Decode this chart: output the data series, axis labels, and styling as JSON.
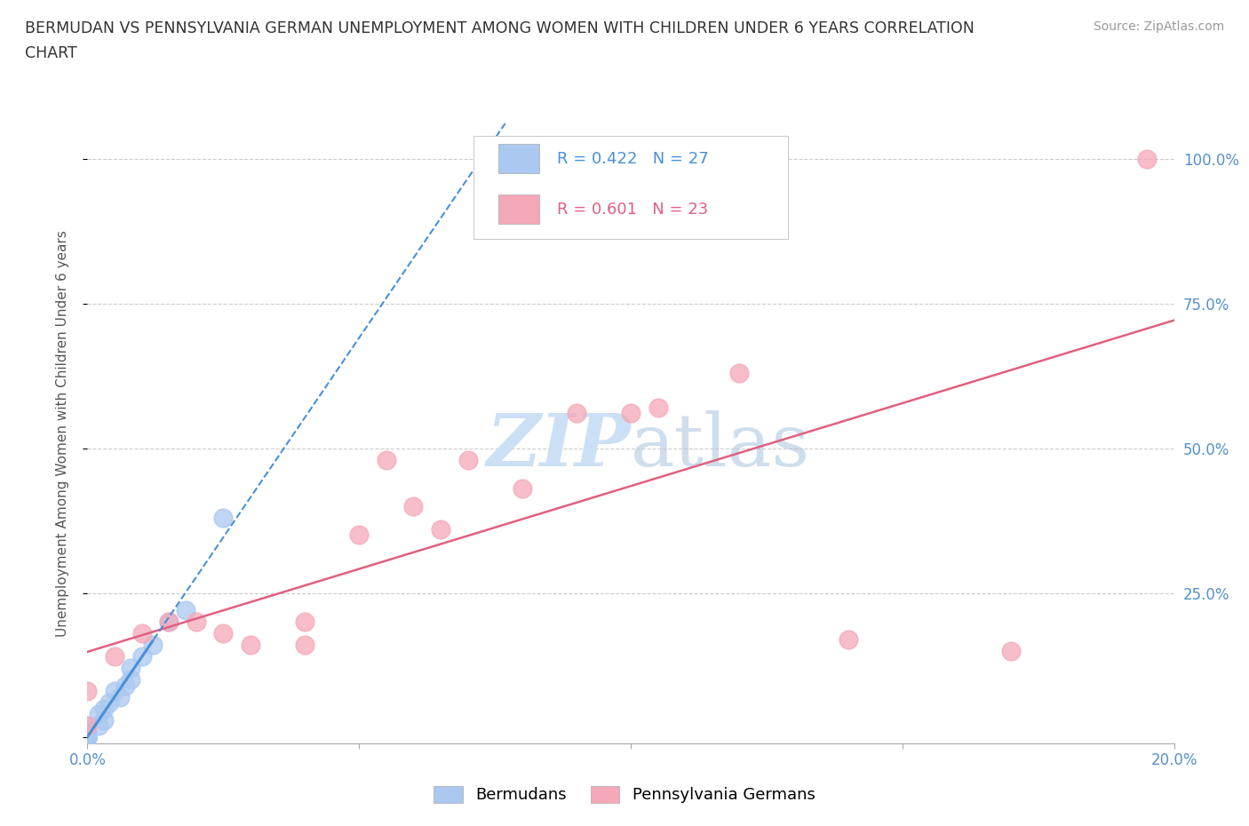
{
  "title_line1": "BERMUDAN VS PENNSYLVANIA GERMAN UNEMPLOYMENT AMONG WOMEN WITH CHILDREN UNDER 6 YEARS CORRELATION",
  "title_line2": "CHART",
  "source": "Source: ZipAtlas.com",
  "ylabel": "Unemployment Among Women with Children Under 6 years",
  "xlim": [
    0,
    0.2
  ],
  "ylim": [
    -0.01,
    1.06
  ],
  "bermudans_x": [
    0.0,
    0.0,
    0.0,
    0.0,
    0.0,
    0.0,
    0.0,
    0.0,
    0.0,
    0.0,
    0.0,
    0.0,
    0.002,
    0.002,
    0.003,
    0.003,
    0.004,
    0.005,
    0.006,
    0.007,
    0.008,
    0.008,
    0.01,
    0.012,
    0.015,
    0.018,
    0.025
  ],
  "bermudans_y": [
    0.0,
    0.0,
    0.0,
    0.0,
    0.0,
    0.0,
    0.0,
    0.0,
    0.005,
    0.01,
    0.01,
    0.02,
    0.02,
    0.04,
    0.03,
    0.05,
    0.06,
    0.08,
    0.07,
    0.09,
    0.1,
    0.12,
    0.14,
    0.16,
    0.2,
    0.22,
    0.38
  ],
  "pa_german_x": [
    0.0,
    0.0,
    0.005,
    0.01,
    0.015,
    0.02,
    0.025,
    0.03,
    0.04,
    0.04,
    0.05,
    0.055,
    0.06,
    0.065,
    0.07,
    0.08,
    0.09,
    0.1,
    0.105,
    0.12,
    0.14,
    0.17,
    0.195
  ],
  "pa_german_y": [
    0.02,
    0.08,
    0.14,
    0.18,
    0.2,
    0.2,
    0.18,
    0.16,
    0.16,
    0.2,
    0.35,
    0.48,
    0.4,
    0.36,
    0.48,
    0.43,
    0.56,
    0.56,
    0.57,
    0.63,
    0.17,
    0.15,
    1.0
  ],
  "bermudans_color": "#aac8f0",
  "pa_german_color": "#f5a8b8",
  "bermudans_line_color": "#4a90d9",
  "pa_german_line_color": "#e06080",
  "bermudans_R": 0.422,
  "bermudans_N": 27,
  "pa_german_R": 0.601,
  "pa_german_N": 23,
  "background_color": "#ffffff",
  "grid_color": "#cccccc",
  "watermark_color": "#cce0f5",
  "legend_color_blue": "#aac8f0",
  "legend_color_pink": "#f5a8b8"
}
